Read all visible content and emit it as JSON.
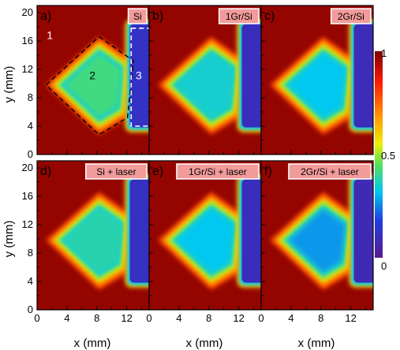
{
  "chart_data": {
    "type": "heatmap",
    "colormap": "rainbow",
    "panels": [
      {
        "id": "a",
        "panel_label": "a)",
        "tag": "Si",
        "region_labels": [
          "1",
          "2",
          "3"
        ],
        "center_value": 0.42,
        "right_value": 0.12,
        "background_value": 0.97
      },
      {
        "id": "b",
        "panel_label": "b)",
        "tag": "1Gr/Si",
        "center_value": 0.35,
        "right_value": 0.1,
        "background_value": 0.97
      },
      {
        "id": "c",
        "panel_label": "c)",
        "tag": "2Gr/Si",
        "center_value": 0.32,
        "right_value": 0.09,
        "background_value": 0.97
      },
      {
        "id": "d",
        "panel_label": "d)",
        "tag": "Si + laser",
        "center_value": 0.38,
        "right_value": 0.11,
        "background_value": 0.97
      },
      {
        "id": "e",
        "panel_label": "e)",
        "tag": "1Gr/Si + laser",
        "center_value": 0.32,
        "right_value": 0.1,
        "background_value": 0.97
      },
      {
        "id": "f",
        "panel_label": "f)",
        "tag": "2Gr/Si + laser",
        "center_value": 0.27,
        "right_value": 0.08,
        "background_value": 0.97
      }
    ],
    "xlabel": "x (mm)",
    "ylabel": "y (mm)",
    "xlim": [
      0,
      15
    ],
    "ylim": [
      0,
      21
    ],
    "x_ticks": [
      "0",
      "4",
      "8",
      "12"
    ],
    "y_ticks": [
      "0",
      "4",
      "8",
      "12",
      "16",
      "20"
    ],
    "colorbar": {
      "range": [
        0,
        1
      ],
      "tick_labels": [
        "1",
        "0.5",
        "0"
      ]
    },
    "colors": {
      "high": "#e3261e",
      "mid": "#f2e600",
      "low": "#2a3fd8",
      "min": "#6a1fa8",
      "tag_bg": "#f29b9b"
    }
  }
}
